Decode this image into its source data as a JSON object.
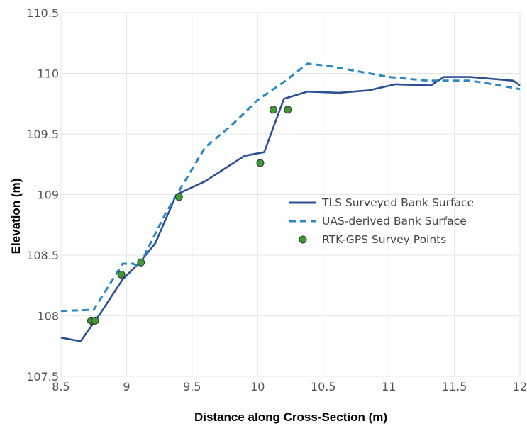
{
  "chart_data": {
    "type": "line",
    "title": "",
    "xlabel": "Distance along Cross-Section (m)",
    "ylabel": "Elevation (m)",
    "xlim": [
      8.5,
      12
    ],
    "ylim": [
      107.5,
      110.5
    ],
    "x_ticks": [
      8.5,
      9,
      9.5,
      10,
      10.5,
      11,
      11.5,
      12
    ],
    "x_tick_labels": [
      "8.5",
      "9",
      "9.5",
      "10",
      "10.5",
      "11",
      "11.5",
      "12"
    ],
    "y_ticks": [
      107.5,
      108,
      108.5,
      109,
      109.5,
      110,
      110.5
    ],
    "y_tick_labels": [
      "107.5",
      "108",
      "108.5",
      "109",
      "109.5",
      "110",
      "110.5"
    ],
    "grid": true,
    "legend_position": "middle-right",
    "series": [
      {
        "name": "TLS Surveyed Bank Surface",
        "style": "solid",
        "color": "#2a4f94",
        "x": [
          8.5,
          8.65,
          8.8,
          8.97,
          9.1,
          9.22,
          9.38,
          9.6,
          9.9,
          10.05,
          10.2,
          10.38,
          10.62,
          10.85,
          11.05,
          11.32,
          11.42,
          11.62,
          11.95,
          12.0
        ],
        "y": [
          107.82,
          107.79,
          108.02,
          108.3,
          108.44,
          108.6,
          109.0,
          109.11,
          109.32,
          109.35,
          109.79,
          109.85,
          109.84,
          109.86,
          109.91,
          109.9,
          109.97,
          109.97,
          109.94,
          109.9
        ]
      },
      {
        "name": "UAS-derived Bank Surface",
        "style": "dashed",
        "color": "#2b86c4",
        "x": [
          8.5,
          8.75,
          8.97,
          9.05,
          9.1,
          9.15,
          9.3,
          9.45,
          9.6,
          9.8,
          10.0,
          10.2,
          10.38,
          10.55,
          10.75,
          11.0,
          11.3,
          11.62,
          11.8,
          12.0
        ],
        "y": [
          108.04,
          108.05,
          108.43,
          108.43,
          108.4,
          108.53,
          108.85,
          109.12,
          109.39,
          109.57,
          109.78,
          109.93,
          110.08,
          110.06,
          110.02,
          109.97,
          109.94,
          109.94,
          109.91,
          109.87
        ]
      },
      {
        "name": "RTK-GPS Survey Points",
        "style": "markers",
        "color": "#3f9a34",
        "x": [
          8.73,
          8.76,
          8.96,
          9.11,
          9.4,
          10.02,
          10.12,
          10.23
        ],
        "y": [
          107.96,
          107.96,
          108.34,
          108.44,
          108.98,
          109.26,
          109.7,
          109.7
        ]
      }
    ]
  }
}
